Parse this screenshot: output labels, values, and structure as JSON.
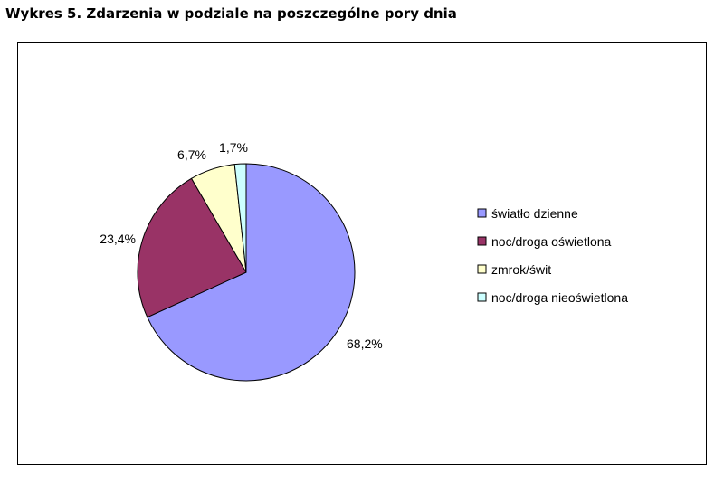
{
  "page": {
    "title": "Wykres 5. Zdarzenia w podziale na poszczególne pory dnia"
  },
  "chart_data": {
    "type": "pie",
    "categories": [
      "światło dzienne",
      "noc/droga oświetlona",
      "zmrok/świt",
      "noc/droga nieoświetlona"
    ],
    "values": [
      68.2,
      23.4,
      6.7,
      1.7
    ],
    "data_labels": [
      "68,2%",
      "23,4%",
      "6,7%",
      "1,7%"
    ],
    "colors": [
      "#9999ff",
      "#993366",
      "#ffffcc",
      "#ccffff"
    ],
    "legend": {
      "position": "right",
      "entries": [
        "światło dzienne",
        "noc/droga oświetlona",
        "zmrok/świt",
        "noc/droga nieoświetlona"
      ]
    }
  }
}
